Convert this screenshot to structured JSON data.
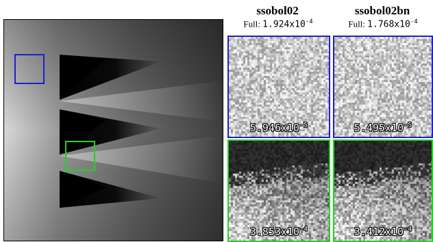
{
  "columns": [
    {
      "title": "ssobol02",
      "full_prefix": "Full: ",
      "full_value": "1.924x10",
      "full_exp": "-4",
      "crops": [
        {
          "region": "blue",
          "error_value": "5.946x10",
          "error_exp": "-5"
        },
        {
          "region": "green",
          "error_value": "3.853x10",
          "error_exp": "-4"
        }
      ]
    },
    {
      "title": "ssobol02bn",
      "full_prefix": "Full: ",
      "full_value": "1.768x10",
      "full_exp": "-4",
      "crops": [
        {
          "region": "blue",
          "error_value": "5.495x10",
          "error_exp": "-5"
        },
        {
          "region": "green",
          "error_value": "3.412x10",
          "error_exp": "-4"
        }
      ]
    }
  ],
  "colors": {
    "blue_box": "#1f1fcc",
    "green_box": "#1fd31f"
  }
}
